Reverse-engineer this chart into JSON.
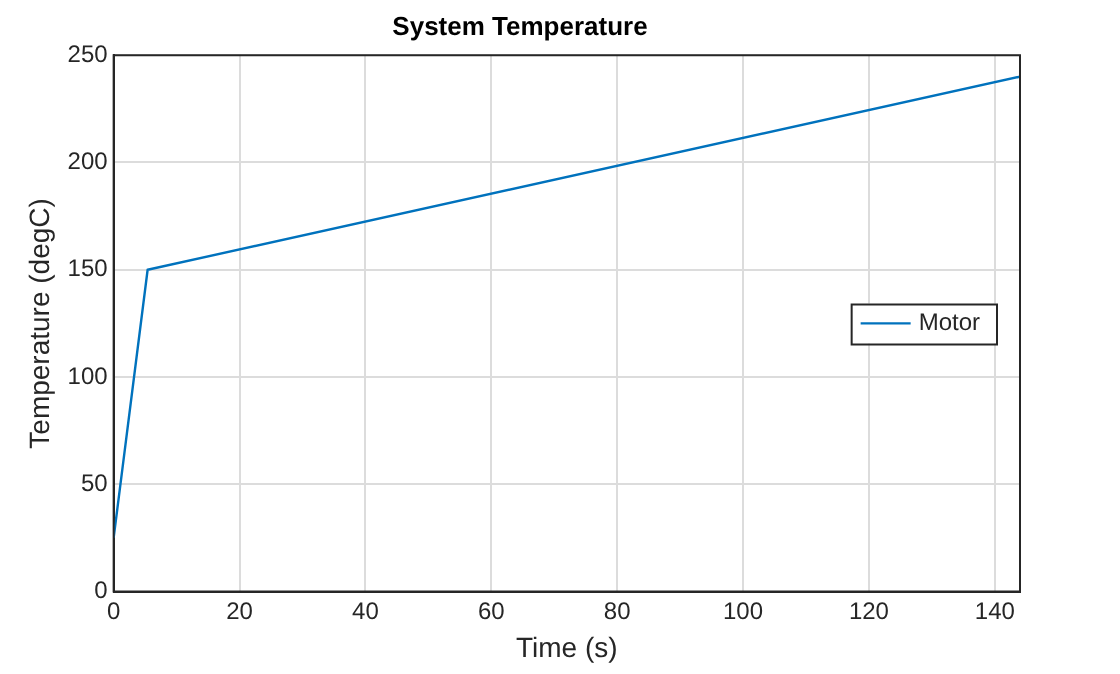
{
  "chart_data": {
    "type": "line",
    "title": "System Temperature",
    "xlabel": "Time (s)",
    "ylabel": "Temperature (degC)",
    "x": [
      0,
      5.4,
      144
    ],
    "series": [
      {
        "name": "Motor",
        "color": "#0072bd",
        "values": [
          25,
          150,
          240
        ]
      }
    ],
    "xlim": [
      0,
      144
    ],
    "xticks": [
      0,
      20,
      40,
      60,
      80,
      100,
      120,
      140
    ],
    "ylim": [
      0,
      250
    ],
    "yticks": [
      0,
      50,
      100,
      150,
      200,
      250
    ],
    "grid": true,
    "legend": "right",
    "marker": "none",
    "line_style": "solid"
  }
}
